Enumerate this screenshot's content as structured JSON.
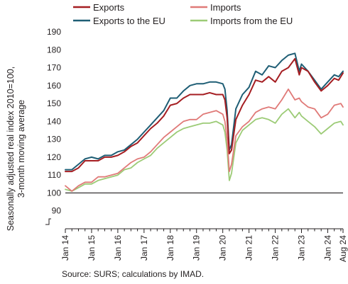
{
  "chart_data": {
    "type": "line",
    "title": "",
    "ylabel_lines": [
      "Seasonally adjusted real index 2010=100,",
      "3-month moving average"
    ],
    "xlabel": "",
    "ylim": [
      80,
      190
    ],
    "yticks": [
      90,
      100,
      110,
      120,
      130,
      140,
      150,
      160,
      170,
      180,
      190
    ],
    "axis_break_below": 90,
    "reference_line": 100,
    "x_ticks": [
      {
        "label": "Jan 14",
        "date": "2014-01"
      },
      {
        "label": "Jan 15",
        "date": "2015-01"
      },
      {
        "label": "Jan 16",
        "date": "2016-01"
      },
      {
        "label": "Jan 17",
        "date": "2017-01"
      },
      {
        "label": "Jan 18",
        "date": "2018-01"
      },
      {
        "label": "Jan 19",
        "date": "2019-01"
      },
      {
        "label": "Jan 20",
        "date": "2020-01"
      },
      {
        "label": "Jan 21",
        "date": "2021-01"
      },
      {
        "label": "Jan 22",
        "date": "2022-01"
      },
      {
        "label": "Jan 23",
        "date": "2023-01"
      },
      {
        "label": "Jan 24",
        "date": "2024-01"
      },
      {
        "label": "Aug 24",
        "date": "2024-08"
      }
    ],
    "grid": false,
    "legend_placement": "top",
    "series": [
      {
        "name": "Exports",
        "color": "#a51e22",
        "width": 2.0,
        "points": [
          [
            "2014-01",
            112
          ],
          [
            "2014-04",
            112
          ],
          [
            "2014-07",
            114
          ],
          [
            "2014-10",
            118
          ],
          [
            "2015-01",
            118
          ],
          [
            "2015-04",
            118
          ],
          [
            "2015-07",
            120
          ],
          [
            "2015-10",
            120
          ],
          [
            "2016-01",
            121
          ],
          [
            "2016-04",
            123
          ],
          [
            "2016-07",
            126
          ],
          [
            "2016-10",
            128
          ],
          [
            "2017-01",
            132
          ],
          [
            "2017-04",
            136
          ],
          [
            "2017-07",
            139
          ],
          [
            "2017-10",
            143
          ],
          [
            "2018-01",
            149
          ],
          [
            "2018-04",
            150
          ],
          [
            "2018-07",
            153
          ],
          [
            "2018-10",
            155
          ],
          [
            "2019-01",
            155
          ],
          [
            "2019-04",
            155
          ],
          [
            "2019-07",
            156
          ],
          [
            "2019-10",
            155
          ],
          [
            "2020-01",
            155
          ],
          [
            "2020-02",
            152
          ],
          [
            "2020-03",
            142
          ],
          [
            "2020-04",
            122
          ],
          [
            "2020-05",
            124
          ],
          [
            "2020-07",
            141
          ],
          [
            "2020-10",
            149
          ],
          [
            "2021-01",
            155
          ],
          [
            "2021-04",
            163
          ],
          [
            "2021-07",
            162
          ],
          [
            "2021-10",
            165
          ],
          [
            "2022-01",
            162
          ],
          [
            "2022-04",
            168
          ],
          [
            "2022-07",
            170
          ],
          [
            "2022-10",
            175
          ],
          [
            "2022-12",
            166
          ],
          [
            "2023-01",
            170
          ],
          [
            "2023-04",
            168
          ],
          [
            "2023-07",
            162
          ],
          [
            "2023-10",
            157
          ],
          [
            "2024-01",
            160
          ],
          [
            "2024-04",
            164
          ],
          [
            "2024-06",
            163
          ],
          [
            "2024-08",
            167
          ]
        ]
      },
      {
        "name": "Imports",
        "color": "#e07a78",
        "width": 1.8,
        "points": [
          [
            "2014-01",
            104
          ],
          [
            "2014-04",
            101
          ],
          [
            "2014-07",
            104
          ],
          [
            "2014-10",
            106
          ],
          [
            "2015-01",
            106
          ],
          [
            "2015-04",
            109
          ],
          [
            "2015-07",
            109
          ],
          [
            "2015-10",
            110
          ],
          [
            "2016-01",
            111
          ],
          [
            "2016-04",
            114
          ],
          [
            "2016-07",
            117
          ],
          [
            "2016-10",
            119
          ],
          [
            "2017-01",
            120
          ],
          [
            "2017-04",
            123
          ],
          [
            "2017-07",
            127
          ],
          [
            "2017-10",
            131
          ],
          [
            "2018-01",
            134
          ],
          [
            "2018-04",
            137
          ],
          [
            "2018-07",
            140
          ],
          [
            "2018-10",
            141
          ],
          [
            "2019-01",
            141
          ],
          [
            "2019-04",
            144
          ],
          [
            "2019-07",
            145
          ],
          [
            "2019-10",
            146
          ],
          [
            "2020-01",
            144
          ],
          [
            "2020-02",
            140
          ],
          [
            "2020-03",
            130
          ],
          [
            "2020-04",
            112
          ],
          [
            "2020-05",
            116
          ],
          [
            "2020-07",
            132
          ],
          [
            "2020-10",
            137
          ],
          [
            "2021-01",
            140
          ],
          [
            "2021-04",
            145
          ],
          [
            "2021-07",
            147
          ],
          [
            "2021-10",
            148
          ],
          [
            "2022-01",
            147
          ],
          [
            "2022-04",
            152
          ],
          [
            "2022-07",
            158
          ],
          [
            "2022-10",
            152
          ],
          [
            "2022-12",
            153
          ],
          [
            "2023-01",
            151
          ],
          [
            "2023-04",
            148
          ],
          [
            "2023-07",
            147
          ],
          [
            "2023-10",
            142
          ],
          [
            "2024-01",
            144
          ],
          [
            "2024-04",
            149
          ],
          [
            "2024-07",
            150
          ],
          [
            "2024-08",
            148
          ]
        ]
      },
      {
        "name": "Exports to the EU",
        "color": "#1f5e75",
        "width": 2.0,
        "points": [
          [
            "2014-01",
            113
          ],
          [
            "2014-04",
            113
          ],
          [
            "2014-07",
            116
          ],
          [
            "2014-10",
            119
          ],
          [
            "2015-01",
            120
          ],
          [
            "2015-04",
            119
          ],
          [
            "2015-07",
            121
          ],
          [
            "2015-10",
            121
          ],
          [
            "2016-01",
            123
          ],
          [
            "2016-04",
            124
          ],
          [
            "2016-07",
            127
          ],
          [
            "2016-10",
            130
          ],
          [
            "2017-01",
            134
          ],
          [
            "2017-04",
            138
          ],
          [
            "2017-07",
            142
          ],
          [
            "2017-10",
            146
          ],
          [
            "2018-01",
            153
          ],
          [
            "2018-04",
            153
          ],
          [
            "2018-07",
            157
          ],
          [
            "2018-10",
            160
          ],
          [
            "2019-01",
            161
          ],
          [
            "2019-04",
            161
          ],
          [
            "2019-07",
            162
          ],
          [
            "2019-10",
            162
          ],
          [
            "2020-01",
            161
          ],
          [
            "2020-02",
            158
          ],
          [
            "2020-03",
            146
          ],
          [
            "2020-04",
            124
          ],
          [
            "2020-05",
            127
          ],
          [
            "2020-07",
            147
          ],
          [
            "2020-10",
            155
          ],
          [
            "2021-01",
            159
          ],
          [
            "2021-04",
            168
          ],
          [
            "2021-07",
            166
          ],
          [
            "2021-10",
            171
          ],
          [
            "2022-01",
            170
          ],
          [
            "2022-04",
            174
          ],
          [
            "2022-07",
            177
          ],
          [
            "2022-10",
            178
          ],
          [
            "2022-12",
            168
          ],
          [
            "2023-01",
            172
          ],
          [
            "2023-04",
            168
          ],
          [
            "2023-07",
            163
          ],
          [
            "2023-10",
            158
          ],
          [
            "2024-01",
            162
          ],
          [
            "2024-04",
            166
          ],
          [
            "2024-06",
            165
          ],
          [
            "2024-08",
            168
          ]
        ]
      },
      {
        "name": "Imports from the EU",
        "color": "#9ccb76",
        "width": 1.8,
        "points": [
          [
            "2014-01",
            102
          ],
          [
            "2014-04",
            101
          ],
          [
            "2014-07",
            103
          ],
          [
            "2014-10",
            105
          ],
          [
            "2015-01",
            105
          ],
          [
            "2015-04",
            107
          ],
          [
            "2015-07",
            108
          ],
          [
            "2015-10",
            109
          ],
          [
            "2016-01",
            110
          ],
          [
            "2016-04",
            113
          ],
          [
            "2016-07",
            114
          ],
          [
            "2016-10",
            117
          ],
          [
            "2017-01",
            119
          ],
          [
            "2017-04",
            121
          ],
          [
            "2017-07",
            125
          ],
          [
            "2017-10",
            128
          ],
          [
            "2018-01",
            131
          ],
          [
            "2018-04",
            134
          ],
          [
            "2018-07",
            136
          ],
          [
            "2018-10",
            137
          ],
          [
            "2019-01",
            138
          ],
          [
            "2019-04",
            139
          ],
          [
            "2019-07",
            139
          ],
          [
            "2019-10",
            140
          ],
          [
            "2020-01",
            138
          ],
          [
            "2020-02",
            134
          ],
          [
            "2020-03",
            124
          ],
          [
            "2020-04",
            107
          ],
          [
            "2020-05",
            111
          ],
          [
            "2020-07",
            128
          ],
          [
            "2020-10",
            135
          ],
          [
            "2021-01",
            138
          ],
          [
            "2021-04",
            141
          ],
          [
            "2021-07",
            142
          ],
          [
            "2021-10",
            141
          ],
          [
            "2022-01",
            139
          ],
          [
            "2022-04",
            144
          ],
          [
            "2022-07",
            147
          ],
          [
            "2022-10",
            142
          ],
          [
            "2022-12",
            145
          ],
          [
            "2023-01",
            143
          ],
          [
            "2023-04",
            140
          ],
          [
            "2023-07",
            137
          ],
          [
            "2023-10",
            133
          ],
          [
            "2024-01",
            136
          ],
          [
            "2024-04",
            139
          ],
          [
            "2024-07",
            140
          ],
          [
            "2024-08",
            138
          ]
        ]
      }
    ]
  },
  "source_note": "Source: SURS; calculations by IMAD."
}
